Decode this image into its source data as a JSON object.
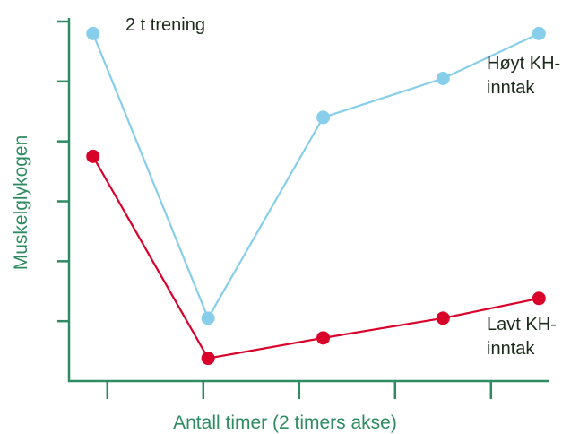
{
  "colors": {
    "axis": "#2e8b62",
    "high_series": "#87ceeb",
    "low_series": "#d9002a",
    "text_dark": "#1c2a1c"
  },
  "chart_data": {
    "type": "line",
    "title": "",
    "xlabel": "Antall timer (2 timers akse)",
    "ylabel": "Muskelglykogen",
    "annotation": "2 t trening",
    "x": [
      0,
      2,
      4,
      6,
      8
    ],
    "xlim": [
      -0.8,
      9.2
    ],
    "ylim": [
      0,
      6
    ],
    "x_ticks": [
      0,
      2,
      4,
      6,
      8
    ],
    "y_ticks": [
      1,
      2,
      3,
      4,
      5,
      6
    ],
    "grid": false,
    "legend": "inline-right",
    "series": [
      {
        "name_lines": [
          "Høyt KH-",
          "inntak"
        ],
        "x": [
          -0.3,
          2.1,
          4.5,
          7.0,
          9.0
        ],
        "values": [
          5.8,
          1.05,
          4.4,
          5.05,
          5.8
        ]
      },
      {
        "name_lines": [
          "Lavt KH-",
          "inntak"
        ],
        "x": [
          -0.3,
          2.1,
          4.5,
          7.0,
          9.0
        ],
        "values": [
          3.75,
          0.38,
          0.72,
          1.05,
          1.38
        ]
      }
    ]
  }
}
